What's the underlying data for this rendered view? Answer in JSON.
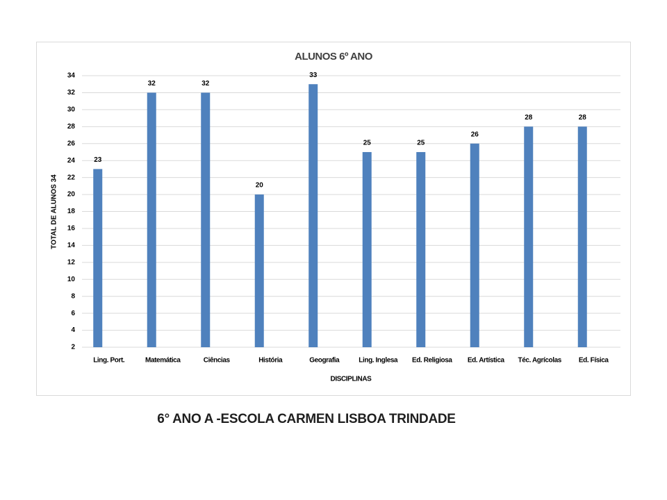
{
  "chart_data": {
    "type": "bar",
    "title": "ALUNOS 6º ANO",
    "y_label": "TOTAL DE ALUNOS 34",
    "x_label": "DISCIPLINAS",
    "categories": [
      "Ling. Port.",
      "Matemática",
      "Ciências",
      "História",
      "Geografia",
      "Ling. Inglesa",
      "Ed. Religiosa",
      "Ed. Artística",
      "Téc. Agrícolas",
      "Ed. Física"
    ],
    "values": [
      23,
      32,
      32,
      20,
      33,
      25,
      25,
      26,
      28,
      28
    ],
    "color": "#4f81bd",
    "ylim": [
      2,
      34
    ],
    "yticks": [
      2,
      4,
      6,
      8,
      10,
      12,
      14,
      16,
      18,
      20,
      22,
      24,
      26,
      28,
      30,
      32,
      34
    ],
    "grid": true,
    "data_labels": true
  },
  "caption": "6° ANO A  -ESCOLA CARMEN LISBOA TRINDADE"
}
